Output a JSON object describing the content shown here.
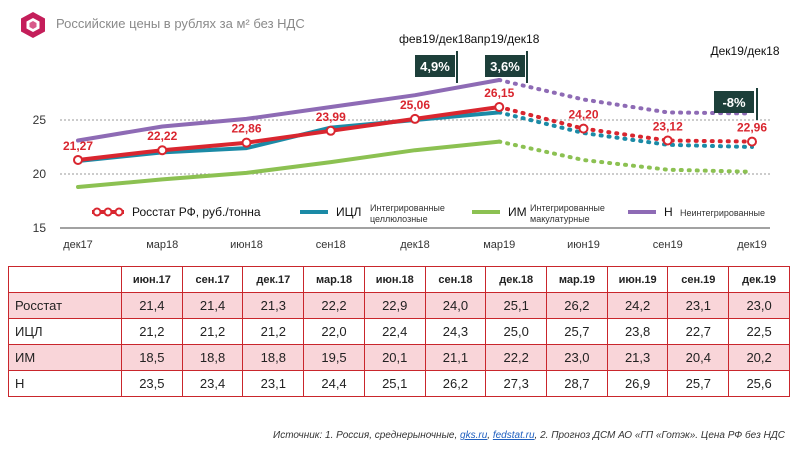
{
  "header": {
    "title": "Российские цены в рублях за м² без НДС"
  },
  "chart_data": {
    "type": "line",
    "x": [
      "дек17",
      "мар18",
      "июн18",
      "сен18",
      "дек18",
      "мар19",
      "июн19",
      "сен19",
      "дек19"
    ],
    "ylim": [
      15,
      27
    ],
    "yticks": [
      "15",
      "20",
      "25"
    ],
    "series": [
      {
        "name": "Росстат РФ, руб./тонна",
        "color": "#d9262f",
        "marker": "circle",
        "actual": [
          21.3,
          22.2,
          22.9,
          24.0,
          25.1,
          26.2
        ],
        "forecast": [
          26.2,
          24.2,
          23.1,
          23.0
        ]
      },
      {
        "name": "ИЦЛ",
        "sub": "Интегрированные целлюлозные",
        "color": "#1b8aa6",
        "actual": [
          21.2,
          22.0,
          22.4,
          24.3,
          25.0,
          25.7
        ],
        "forecast": [
          25.7,
          23.8,
          22.7,
          22.5
        ]
      },
      {
        "name": "ИМ",
        "sub": "Интегрированные макулатурные",
        "color": "#8cc152",
        "actual": [
          18.8,
          19.5,
          20.1,
          21.1,
          22.2,
          23.0
        ],
        "forecast": [
          23.0,
          21.3,
          20.4,
          20.2
        ]
      },
      {
        "name": "Н",
        "sub": "Неинтегрированные",
        "color": "#8e6bb5",
        "actual": [
          23.1,
          24.4,
          25.1,
          26.2,
          27.3,
          28.7
        ],
        "forecast": [
          28.7,
          26.9,
          25.7,
          25.6
        ]
      }
    ],
    "data_labels": [
      "21,27",
      "22,22",
      "22,86",
      "23,99",
      "25,06",
      "26,15",
      "24,20",
      "23,12",
      "22,96"
    ],
    "annotations": {
      "feb_label": "фев19/дек18",
      "feb_value": "4,9%",
      "apr_label": "апр19/дек18",
      "apr_value": "3,6%",
      "dec_label": "Дек19/дек18",
      "dec_value": "-8%"
    }
  },
  "table": {
    "columns": [
      "июн.17",
      "сен.17",
      "дек.17",
      "мар.18",
      "июн.18",
      "сен.18",
      "дек.18",
      "мар.19",
      "июн.19",
      "сен.19",
      "дек.19"
    ],
    "rows": [
      {
        "label": "Росстат",
        "values": [
          "21,4",
          "21,4",
          "21,3",
          "22,2",
          "22,9",
          "24,0",
          "25,1",
          "26,2",
          "24,2",
          "23,1",
          "23,0"
        ]
      },
      {
        "label": "ИЦЛ",
        "values": [
          "21,2",
          "21,2",
          "21,2",
          "22,0",
          "22,4",
          "24,3",
          "25,0",
          "25,7",
          "23,8",
          "22,7",
          "22,5"
        ]
      },
      {
        "label": "ИМ",
        "values": [
          "18,5",
          "18,8",
          "18,8",
          "19,5",
          "20,1",
          "21,1",
          "22,2",
          "23,0",
          "21,3",
          "20,4",
          "20,2"
        ]
      },
      {
        "label": "Н",
        "values": [
          "23,5",
          "23,4",
          "23,1",
          "24,4",
          "25,1",
          "26,2",
          "27,3",
          "28,7",
          "26,9",
          "25,7",
          "25,6"
        ]
      }
    ]
  },
  "source": {
    "prefix": "Источник: 1. Россия, среднерыночные, ",
    "link1": "gks.ru",
    "sep": ", ",
    "link2": "fedstat.ru",
    "suffix": ", 2. Прогноз ДСМ АО «ГП «Готэк». Цена РФ без НДС"
  }
}
